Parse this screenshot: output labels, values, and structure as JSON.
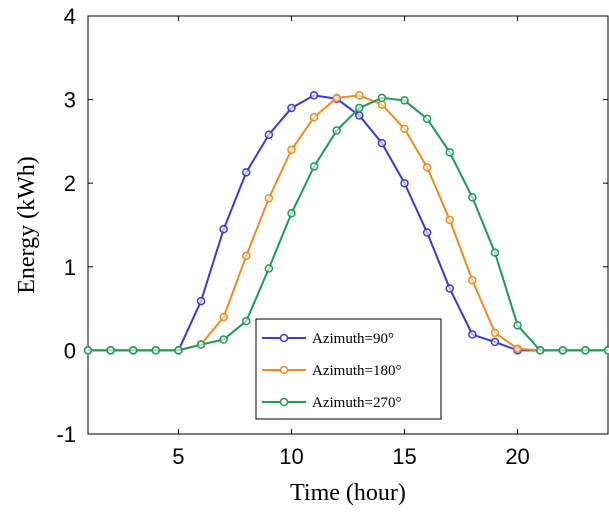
{
  "chart_data": {
    "type": "line",
    "x_label": "Time (hour)",
    "y_label": "Energy (kWh)",
    "x": [
      1,
      2,
      3,
      4,
      5,
      6,
      7,
      8,
      9,
      10,
      11,
      12,
      13,
      14,
      15,
      16,
      17,
      18,
      19,
      20,
      21,
      22,
      23,
      24
    ],
    "series": [
      {
        "name": "Azimuth=90°",
        "color": "#3a3ad8",
        "values": [
          0,
          0,
          0,
          0,
          0,
          0.59,
          1.45,
          2.13,
          2.58,
          2.9,
          3.05,
          3.01,
          2.81,
          2.48,
          2.0,
          1.41,
          0.74,
          0.19,
          0.1,
          0,
          0,
          0,
          0,
          0
        ]
      },
      {
        "name": "Azimuth=180°",
        "color": "#f28c1e",
        "values": [
          0,
          0,
          0,
          0,
          0,
          0.07,
          0.4,
          1.13,
          1.82,
          2.4,
          2.79,
          3.02,
          3.05,
          2.94,
          2.65,
          2.19,
          1.56,
          0.84,
          0.21,
          0.02,
          0,
          0,
          0,
          0
        ]
      },
      {
        "name": "Azimuth=270°",
        "color": "#1e9a58",
        "values": [
          0,
          0,
          0,
          0,
          0,
          0.07,
          0.13,
          0.35,
          0.98,
          1.64,
          2.2,
          2.63,
          2.9,
          3.02,
          2.99,
          2.77,
          2.37,
          1.83,
          1.17,
          0.3,
          0,
          0,
          0,
          0
        ]
      }
    ],
    "xlim": [
      1,
      24
    ],
    "ylim": [
      -1,
      4
    ],
    "xticks": [
      5,
      10,
      15,
      20
    ],
    "yticks": [
      -1,
      0,
      1,
      2,
      3,
      4
    ]
  }
}
